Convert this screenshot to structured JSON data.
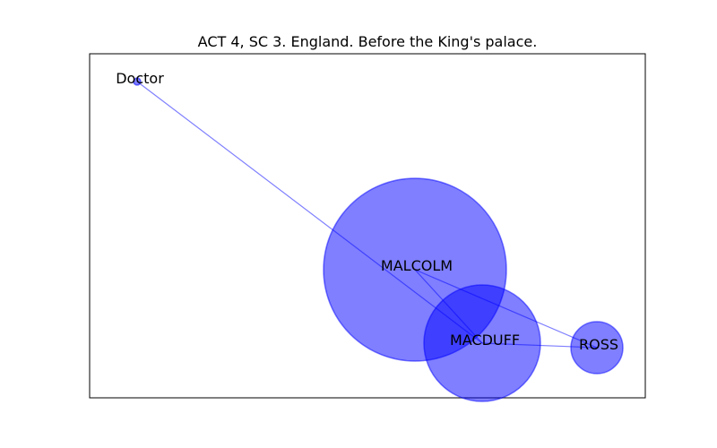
{
  "title": "ACT 4, SC 3. England. Before the King's palace.",
  "colors": {
    "node_fill": "#0000ff",
    "edge": "#0000ff",
    "frame": "#000000",
    "background": "#ffffff"
  },
  "nodes": [
    {
      "id": "doctor",
      "label": "Doctor"
    },
    {
      "id": "malcolm",
      "label": "MALCOLM"
    },
    {
      "id": "macduff",
      "label": "MACDUFF"
    },
    {
      "id": "ross",
      "label": "ROSS"
    }
  ],
  "edges": [
    {
      "source": "doctor",
      "target": "macduff"
    },
    {
      "source": "malcolm",
      "target": "macduff"
    },
    {
      "source": "malcolm",
      "target": "ross"
    },
    {
      "source": "macduff",
      "target": "ross"
    }
  ]
}
